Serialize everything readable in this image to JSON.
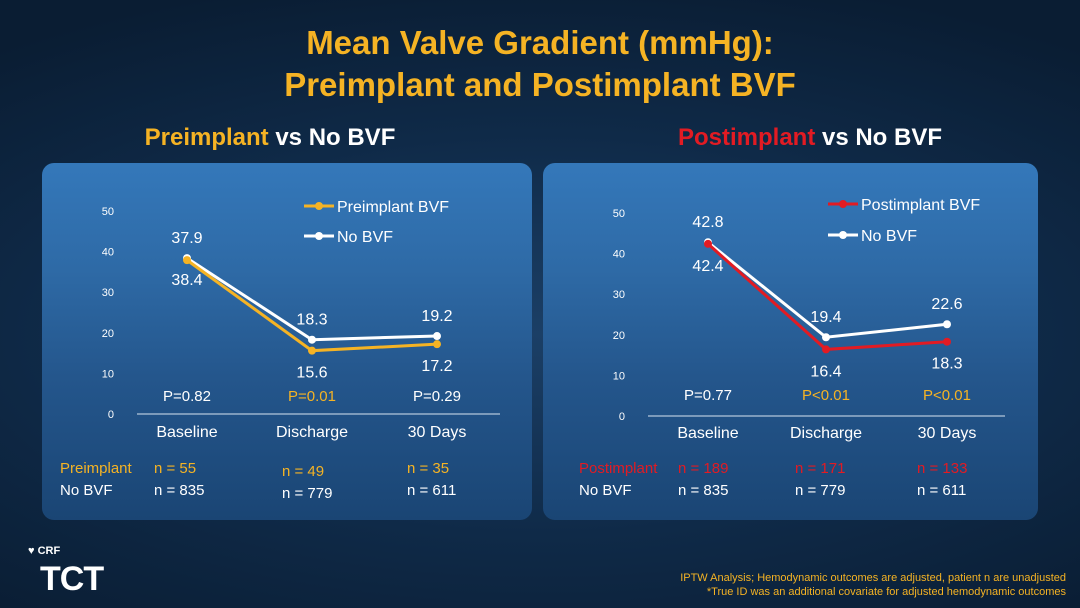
{
  "title_line1": "Mean Valve Gradient (mmHg):",
  "title_line2": "Preimplant and Postimplant BVF",
  "footnote_line1": "IPTW Analysis; Hemodynamic outcomes are adjusted, patient n are unadjusted",
  "footnote_line2": "*True ID was an additional covariate for adjusted hemodynamic outcomes",
  "logo": {
    "crf": "CRF",
    "tct": "TCT"
  },
  "colors": {
    "gold": "#f5b324",
    "red": "#e21b23",
    "white": "#ffffff"
  },
  "chart_data": [
    {
      "type": "line",
      "title_highlight": "Preimplant",
      "title_rest": " vs No BVF",
      "categories": [
        "Baseline",
        "Discharge",
        "30 Days"
      ],
      "ylim": [
        0,
        50
      ],
      "yticks": [
        0,
        10,
        20,
        30,
        40,
        50
      ],
      "series": [
        {
          "name": "Preimplant BVF",
          "color": "#f5b324",
          "values": [
            37.9,
            15.6,
            17.2
          ],
          "labels": [
            "37.9",
            "15.6",
            "17.2"
          ]
        },
        {
          "name": "No BVF",
          "color": "#ffffff",
          "values": [
            38.4,
            18.3,
            19.2
          ],
          "labels": [
            "38.4",
            "18.3",
            "19.2"
          ]
        }
      ],
      "pvalues": [
        {
          "text": "P=0.82",
          "color": "#ffffff"
        },
        {
          "text": "P=0.01",
          "color": "#f5b324"
        },
        {
          "text": "P=0.29",
          "color": "#ffffff"
        }
      ],
      "n_rows": [
        {
          "label": "Preimplant",
          "color": "#f5b324",
          "values": [
            "n = 55",
            "n = 49",
            "n = 35"
          ]
        },
        {
          "label": "No BVF",
          "color": "#ffffff",
          "values": [
            "n = 835",
            "n = 779",
            "n = 611"
          ]
        }
      ]
    },
    {
      "type": "line",
      "title_highlight": "Postimplant",
      "title_rest": " vs No BVF",
      "categories": [
        "Baseline",
        "Discharge",
        "30 Days"
      ],
      "ylim": [
        0,
        50
      ],
      "yticks": [
        0,
        10,
        20,
        30,
        40,
        50
      ],
      "series": [
        {
          "name": "Postimplant BVF",
          "color": "#e21b23",
          "values": [
            42.4,
            16.4,
            18.3
          ],
          "labels": [
            "42.4",
            "16.4",
            "18.3"
          ]
        },
        {
          "name": "No BVF",
          "color": "#ffffff",
          "values": [
            42.8,
            19.4,
            22.6
          ],
          "labels": [
            "42.8",
            "19.4",
            "22.6"
          ]
        }
      ],
      "pvalues": [
        {
          "text": "P=0.77",
          "color": "#ffffff"
        },
        {
          "text": "P<0.01",
          "color": "#f5b324"
        },
        {
          "text": "P<0.01",
          "color": "#f5b324"
        }
      ],
      "n_rows": [
        {
          "label": "Postimplant",
          "color": "#e21b23",
          "values": [
            "n = 189",
            "n = 171",
            "n = 133"
          ]
        },
        {
          "label": "No BVF",
          "color": "#ffffff",
          "values": [
            "n = 835",
            "n = 779",
            "n = 611"
          ]
        }
      ]
    }
  ]
}
